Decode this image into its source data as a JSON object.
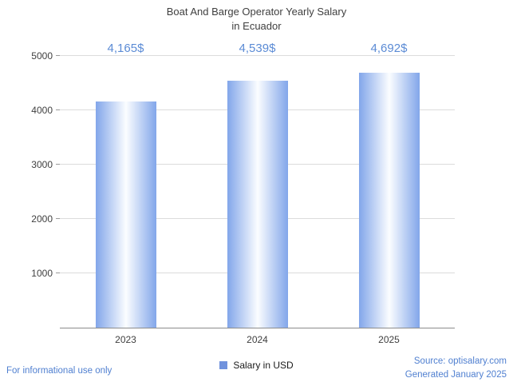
{
  "title_line1": "Boat And Barge Operator Yearly Salary",
  "title_line2": "in Ecuador",
  "chart_data": {
    "type": "bar",
    "title": "Boat And Barge Operator Yearly Salary in Ecuador",
    "categories": [
      "2023",
      "2024",
      "2025"
    ],
    "values": [
      4165,
      4539,
      4692
    ],
    "value_labels": [
      "4,165$",
      "4,539$",
      "4,692$"
    ],
    "ylim": [
      0,
      5000
    ],
    "yticks": [
      "1000",
      "2000",
      "3000",
      "4000",
      "5000"
    ],
    "legend_label": "Salary in USD",
    "legend_position": "bottom",
    "grid": "horizontal",
    "bar_edge_color": "#82a6ea",
    "bar_center_color": "#fbfdff",
    "value_label_color": "#5b8bd5",
    "axis_text_color": "#3f3f3f",
    "legend_swatch_color": "#7092dd",
    "accent_blue": "#4f7fd0"
  },
  "footer": {
    "left_note": "For informational use only",
    "source": "Source: optisalary.com",
    "generated": "Generated January 2025"
  }
}
